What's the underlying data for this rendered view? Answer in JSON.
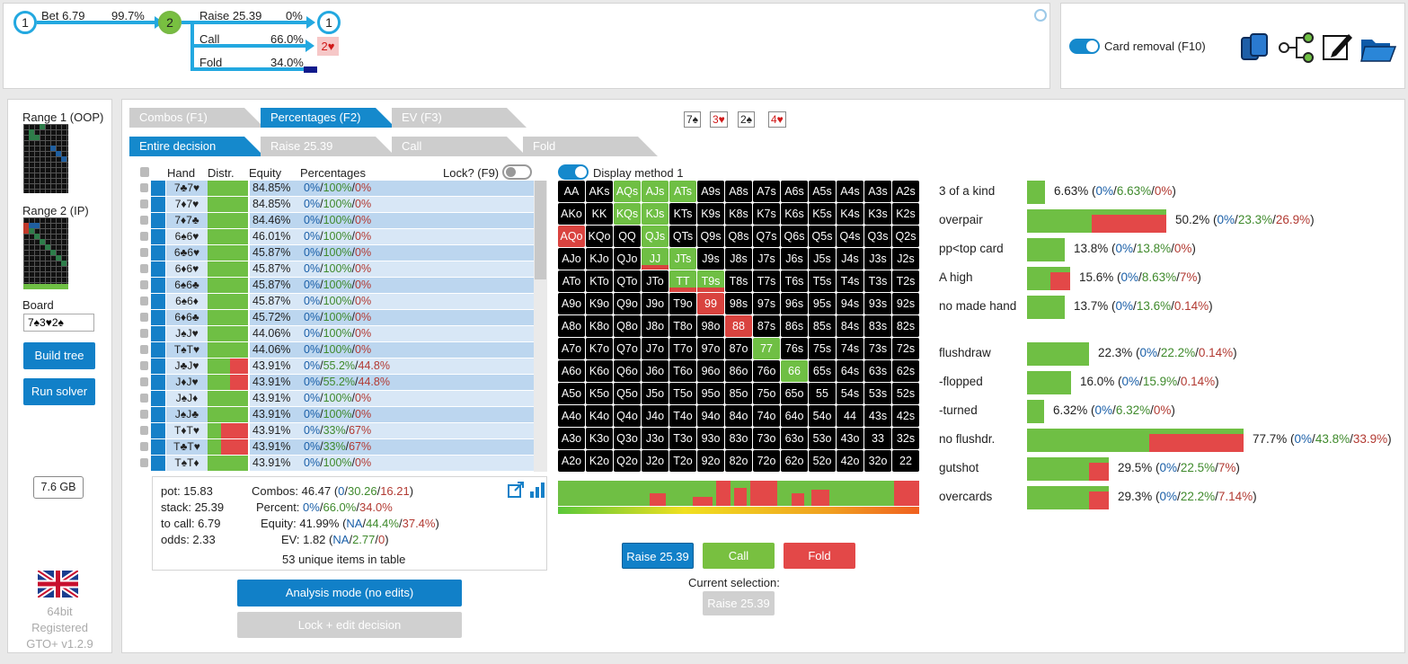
{
  "tree": {
    "node_root": "1",
    "bet_label": "Bet 6.79",
    "bet_pct": "99.7%",
    "node_mid": "2",
    "raise_label": "Raise 25.39",
    "raise_pct": "0%",
    "node_after_raise": "1",
    "call_label": "Call",
    "call_pct": "66.0%",
    "call_end": "2♥",
    "fold_label": "Fold",
    "fold_pct": "34.0%"
  },
  "topright": {
    "card_removal": "Card removal (F10)"
  },
  "sidebar": {
    "range1": "Range 1 (OOP)",
    "range2": "Range 2 (IP)",
    "board_label": "Board",
    "board_value": "7♠3♥2♠",
    "build_tree": "Build tree",
    "run_solver": "Run solver",
    "memory": "7.6 GB",
    "bits": "64bit",
    "registered": "Registered",
    "version": "GTO+ v1.2.9"
  },
  "tabs": {
    "combos": "Combos (F1)",
    "percentages": "Percentages (F2)",
    "ev": "EV (F3)",
    "entire": "Entire decision",
    "raise": "Raise 25.39",
    "call": "Call",
    "fold": "Fold"
  },
  "board_cards": [
    "7♠",
    "3♥",
    "2♠",
    "4♥"
  ],
  "table": {
    "headers": {
      "hand": "Hand",
      "distr": "Distr.",
      "equity": "Equity",
      "percentages": "Percentages",
      "lock": "Lock? (F9)"
    },
    "rows": [
      {
        "hand": "7♣7♥",
        "equity": "84.85%",
        "a": "0%",
        "b": "100%",
        "c": "0%",
        "fold": 0
      },
      {
        "hand": "7♦7♥",
        "equity": "84.85%",
        "a": "0%",
        "b": "100%",
        "c": "0%",
        "fold": 0
      },
      {
        "hand": "7♦7♣",
        "equity": "84.46%",
        "a": "0%",
        "b": "100%",
        "c": "0%",
        "fold": 0
      },
      {
        "hand": "6♠6♥",
        "equity": "46.01%",
        "a": "0%",
        "b": "100%",
        "c": "0%",
        "fold": 0
      },
      {
        "hand": "6♣6♥",
        "equity": "45.87%",
        "a": "0%",
        "b": "100%",
        "c": "0%",
        "fold": 0
      },
      {
        "hand": "6♦6♥",
        "equity": "45.87%",
        "a": "0%",
        "b": "100%",
        "c": "0%",
        "fold": 0
      },
      {
        "hand": "6♠6♣",
        "equity": "45.87%",
        "a": "0%",
        "b": "100%",
        "c": "0%",
        "fold": 0
      },
      {
        "hand": "6♠6♦",
        "equity": "45.87%",
        "a": "0%",
        "b": "100%",
        "c": "0%",
        "fold": 0
      },
      {
        "hand": "6♦6♣",
        "equity": "45.72%",
        "a": "0%",
        "b": "100%",
        "c": "0%",
        "fold": 0
      },
      {
        "hand": "J♠J♥",
        "equity": "44.06%",
        "a": "0%",
        "b": "100%",
        "c": "0%",
        "fold": 0
      },
      {
        "hand": "T♠T♥",
        "equity": "44.06%",
        "a": "0%",
        "b": "100%",
        "c": "0%",
        "fold": 0
      },
      {
        "hand": "J♣J♥",
        "equity": "43.91%",
        "a": "0%",
        "b": "55.2%",
        "c": "44.8%",
        "fold": 44.8
      },
      {
        "hand": "J♦J♥",
        "equity": "43.91%",
        "a": "0%",
        "b": "55.2%",
        "c": "44.8%",
        "fold": 44.8
      },
      {
        "hand": "J♠J♦",
        "equity": "43.91%",
        "a": "0%",
        "b": "100%",
        "c": "0%",
        "fold": 0
      },
      {
        "hand": "J♠J♣",
        "equity": "43.91%",
        "a": "0%",
        "b": "100%",
        "c": "0%",
        "fold": 0
      },
      {
        "hand": "T♦T♥",
        "equity": "43.91%",
        "a": "0%",
        "b": "33%",
        "c": "67%",
        "fold": 67
      },
      {
        "hand": "T♣T♥",
        "equity": "43.91%",
        "a": "0%",
        "b": "33%",
        "c": "67%",
        "fold": 67
      },
      {
        "hand": "T♠T♦",
        "equity": "43.91%",
        "a": "0%",
        "b": "100%",
        "c": "0%",
        "fold": 0
      }
    ]
  },
  "summary": {
    "pot": "pot: 15.83",
    "stack": "stack: 25.39",
    "to_call": "to call: 6.79",
    "odds": "odds: 2.33",
    "combos_label": "Combos:",
    "combos_total": "46.47",
    "combos_a": "0",
    "combos_b": "30.26",
    "combos_c": "16.21",
    "percent_label": "Percent:",
    "percent_a": "0%",
    "percent_b": "66.0%",
    "percent_c": "34.0%",
    "equity_label": "Equity:",
    "equity_total": "41.99%",
    "equity_a": "NA",
    "equity_b": "44.4%",
    "equity_c": "37.4%",
    "ev_label": "EV:",
    "ev_total": "1.82",
    "ev_a": "NA",
    "ev_b": "2.77",
    "ev_c": "0",
    "unique": "53 unique items in table"
  },
  "modes": {
    "analysis": "Analysis mode (no edits)",
    "lock_edit": "Lock + edit decision"
  },
  "display_method": "Display method 1",
  "actions": {
    "raise": "Raise 25.39",
    "call": "Call",
    "fold": "Fold",
    "current_label": "Current selection:",
    "current_value": "Raise 25.39"
  },
  "grid": [
    [
      "AA",
      "AKs",
      "AQs",
      "AJs",
      "ATs",
      "A9s",
      "A8s",
      "A7s",
      "A6s",
      "A5s",
      "A4s",
      "A3s",
      "A2s"
    ],
    [
      "AKo",
      "KK",
      "KQs",
      "KJs",
      "KTs",
      "K9s",
      "K8s",
      "K7s",
      "K6s",
      "K5s",
      "K4s",
      "K3s",
      "K2s"
    ],
    [
      "AQo",
      "KQo",
      "QQ",
      "QJs",
      "QTs",
      "Q9s",
      "Q8s",
      "Q7s",
      "Q6s",
      "Q5s",
      "Q4s",
      "Q3s",
      "Q2s"
    ],
    [
      "AJo",
      "KJo",
      "QJo",
      "JJ",
      "JTs",
      "J9s",
      "J8s",
      "J7s",
      "J6s",
      "J5s",
      "J4s",
      "J3s",
      "J2s"
    ],
    [
      "ATo",
      "KTo",
      "QTo",
      "JTo",
      "TT",
      "T9s",
      "T8s",
      "T7s",
      "T6s",
      "T5s",
      "T4s",
      "T3s",
      "T2s"
    ],
    [
      "A9o",
      "K9o",
      "Q9o",
      "J9o",
      "T9o",
      "99",
      "98s",
      "97s",
      "96s",
      "95s",
      "94s",
      "93s",
      "92s"
    ],
    [
      "A8o",
      "K8o",
      "Q8o",
      "J8o",
      "T8o",
      "98o",
      "88",
      "87s",
      "86s",
      "85s",
      "84s",
      "83s",
      "82s"
    ],
    [
      "A7o",
      "K7o",
      "Q7o",
      "J7o",
      "T7o",
      "97o",
      "87o",
      "77",
      "76s",
      "75s",
      "74s",
      "73s",
      "72s"
    ],
    [
      "A6o",
      "K6o",
      "Q6o",
      "J6o",
      "T6o",
      "96o",
      "86o",
      "76o",
      "66",
      "65s",
      "64s",
      "63s",
      "62s"
    ],
    [
      "A5o",
      "K5o",
      "Q5o",
      "J5o",
      "T5o",
      "95o",
      "85o",
      "75o",
      "65o",
      "55",
      "54s",
      "53s",
      "52s"
    ],
    [
      "A4o",
      "K4o",
      "Q4o",
      "J4o",
      "T4o",
      "94o",
      "84o",
      "74o",
      "64o",
      "54o",
      "44",
      "43s",
      "42s"
    ],
    [
      "A3o",
      "K3o",
      "Q3o",
      "J3o",
      "T3o",
      "93o",
      "83o",
      "73o",
      "63o",
      "53o",
      "43o",
      "33",
      "32s"
    ],
    [
      "A2o",
      "K2o",
      "Q2o",
      "J2o",
      "T2o",
      "92o",
      "82o",
      "72o",
      "62o",
      "52o",
      "42o",
      "32o",
      "22"
    ]
  ],
  "grid_colors": {
    "green": [
      "AQs",
      "AJs",
      "ATs",
      "KQs",
      "KJs",
      "QJs",
      "JJ",
      "JTs",
      "TT",
      "T9s",
      "77",
      "66"
    ],
    "red": [
      "AQo",
      "99",
      "88"
    ]
  },
  "stats": [
    {
      "label": "3 of a kind",
      "total": "6.63%",
      "a": "0%",
      "b": "6.63%",
      "c": "0%",
      "width": 20
    },
    {
      "label": "overpair",
      "total": "50.2%",
      "a": "0%",
      "b": "23.3%",
      "c": "26.9%",
      "width": 155
    },
    {
      "label": "pp<top card",
      "total": "13.8%",
      "a": "0%",
      "b": "13.8%",
      "c": "0%",
      "width": 42
    },
    {
      "label": "A high",
      "total": "15.6%",
      "a": "0%",
      "b": "8.63%",
      "c": "7%",
      "width": 48
    },
    {
      "label": "no made hand",
      "total": "13.7%",
      "a": "0%",
      "b": "13.6%",
      "c": "0.14%",
      "width": 42
    },
    {
      "label": "flushdraw",
      "total": "22.3%",
      "a": "0%",
      "b": "22.2%",
      "c": "0.14%",
      "width": 69
    },
    {
      "label": "-flopped",
      "total": "16.0%",
      "a": "0%",
      "b": "15.9%",
      "c": "0.14%",
      "width": 49
    },
    {
      "label": "-turned",
      "total": "6.32%",
      "a": "0%",
      "b": "6.32%",
      "c": "0%",
      "width": 19
    },
    {
      "label": "no flushdr.",
      "total": "77.7%",
      "a": "0%",
      "b": "43.8%",
      "c": "33.9%",
      "width": 241
    },
    {
      "label": "gutshot",
      "total": "29.5%",
      "a": "0%",
      "b": "22.5%",
      "c": "7%",
      "width": 91
    },
    {
      "label": "overcards",
      "total": "29.3%",
      "a": "0%",
      "b": "22.2%",
      "c": "7.14%",
      "width": 91
    }
  ],
  "colors": {
    "accent": "#1589cc",
    "call": "#6fbf44",
    "fold": "#e34848",
    "raise": "#1180c8"
  }
}
